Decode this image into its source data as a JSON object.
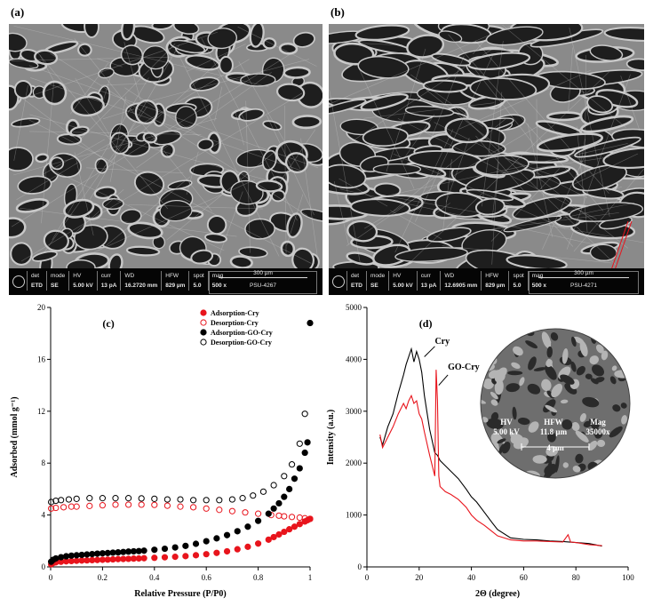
{
  "panels": {
    "a": "(a)",
    "b": "(b)",
    "c": "(c)",
    "d": "(d)"
  },
  "sem_a": {
    "headers": [
      "det",
      "mode",
      "HV",
      "curr",
      "WD",
      "HFW",
      "spot",
      "mag"
    ],
    "values": [
      "ETD",
      "SE",
      "5.00 kV",
      "13 pA",
      "16.2720 mm",
      "829 µm",
      "5.0",
      "500 x"
    ],
    "scale_label": "300 µm",
    "image_id": "PSU-4267"
  },
  "sem_b": {
    "headers": [
      "det",
      "mode",
      "HV",
      "curr",
      "WD",
      "HFW",
      "spot",
      "mag"
    ],
    "values": [
      "ETD",
      "SE",
      "5.00 kV",
      "13 pA",
      "12.6905 mm",
      "829 µm",
      "5.0",
      "500 x"
    ],
    "scale_label": "300 µm",
    "image_id": "PSU-4271"
  },
  "inset": {
    "labels": [
      "HV",
      "HFW",
      "Mag"
    ],
    "values": [
      "5.00 kV",
      "11.8 µm",
      "35000x"
    ],
    "scale_label": "4 µm"
  },
  "colors": {
    "red": "#e8141c",
    "black": "#000000"
  },
  "chart_data": [
    {
      "type": "scatter",
      "panel": "(c)",
      "xlabel": "Relative Pressure (P/P0)",
      "ylabel": "Adsorbed (mmol g⁻¹)",
      "xlim": [
        0,
        1
      ],
      "ylim": [
        0,
        20
      ],
      "xticks": [
        "0",
        "0.2",
        "0.4",
        "0.6",
        "0.8",
        "1"
      ],
      "yticks": [
        "0",
        "4",
        "8",
        "12",
        "16",
        "20"
      ],
      "legend_position": "top-right",
      "series": [
        {
          "name": "Adsorption-Cry",
          "color": "#e8141c",
          "fill": true,
          "x": [
            0.002,
            0.01,
            0.02,
            0.04,
            0.06,
            0.08,
            0.1,
            0.12,
            0.14,
            0.16,
            0.18,
            0.2,
            0.22,
            0.24,
            0.26,
            0.28,
            0.3,
            0.32,
            0.34,
            0.36,
            0.4,
            0.44,
            0.48,
            0.52,
            0.56,
            0.6,
            0.64,
            0.68,
            0.72,
            0.76,
            0.8,
            0.84,
            0.86,
            0.88,
            0.9,
            0.92,
            0.94,
            0.96,
            0.98,
            0.99,
            1.0
          ],
          "y": [
            0.2,
            0.3,
            0.35,
            0.4,
            0.43,
            0.45,
            0.47,
            0.49,
            0.5,
            0.52,
            0.53,
            0.55,
            0.56,
            0.58,
            0.6,
            0.61,
            0.62,
            0.64,
            0.65,
            0.67,
            0.7,
            0.74,
            0.78,
            0.83,
            0.9,
            0.98,
            1.08,
            1.2,
            1.36,
            1.55,
            1.8,
            2.1,
            2.3,
            2.5,
            2.7,
            2.9,
            3.1,
            3.3,
            3.5,
            3.6,
            3.7
          ]
        },
        {
          "name": "Desorption-Cry",
          "color": "#e8141c",
          "fill": false,
          "x": [
            0.002,
            0.02,
            0.05,
            0.08,
            0.1,
            0.15,
            0.2,
            0.25,
            0.3,
            0.35,
            0.4,
            0.45,
            0.5,
            0.55,
            0.6,
            0.65,
            0.7,
            0.75,
            0.8,
            0.85,
            0.88,
            0.9,
            0.93,
            0.96,
            0.98,
            1.0
          ],
          "y": [
            4.5,
            4.55,
            4.6,
            4.65,
            4.65,
            4.7,
            4.75,
            4.8,
            4.8,
            4.8,
            4.78,
            4.72,
            4.65,
            4.6,
            4.5,
            4.4,
            4.3,
            4.2,
            4.1,
            4.0,
            3.95,
            3.9,
            3.85,
            3.8,
            3.75,
            3.7
          ]
        },
        {
          "name": "Adsorption-GO-Cry",
          "color": "#000000",
          "fill": true,
          "x": [
            0.002,
            0.01,
            0.02,
            0.04,
            0.06,
            0.08,
            0.1,
            0.12,
            0.14,
            0.16,
            0.18,
            0.2,
            0.22,
            0.24,
            0.26,
            0.28,
            0.3,
            0.32,
            0.34,
            0.36,
            0.4,
            0.44,
            0.48,
            0.52,
            0.56,
            0.6,
            0.64,
            0.68,
            0.72,
            0.76,
            0.8,
            0.84,
            0.86,
            0.88,
            0.9,
            0.92,
            0.94,
            0.96,
            0.98,
            0.99,
            1.0
          ],
          "y": [
            0.4,
            0.55,
            0.65,
            0.75,
            0.82,
            0.87,
            0.9,
            0.93,
            0.96,
            0.99,
            1.02,
            1.05,
            1.07,
            1.1,
            1.12,
            1.15,
            1.18,
            1.2,
            1.22,
            1.25,
            1.32,
            1.4,
            1.5,
            1.62,
            1.78,
            1.98,
            2.2,
            2.45,
            2.75,
            3.1,
            3.55,
            4.1,
            4.5,
            4.9,
            5.4,
            6.0,
            6.8,
            7.6,
            8.8,
            9.6,
            18.8
          ]
        },
        {
          "name": "Desorption-GO-Cry",
          "color": "#000000",
          "fill": false,
          "x": [
            0.002,
            0.02,
            0.04,
            0.07,
            0.1,
            0.15,
            0.2,
            0.25,
            0.3,
            0.35,
            0.4,
            0.45,
            0.5,
            0.55,
            0.6,
            0.65,
            0.7,
            0.74,
            0.78,
            0.82,
            0.86,
            0.9,
            0.93,
            0.96,
            0.98
          ],
          "y": [
            5.0,
            5.1,
            5.15,
            5.2,
            5.25,
            5.3,
            5.3,
            5.3,
            5.3,
            5.28,
            5.25,
            5.2,
            5.2,
            5.15,
            5.15,
            5.15,
            5.2,
            5.3,
            5.5,
            5.8,
            6.3,
            7.0,
            7.9,
            9.5,
            11.8
          ]
        }
      ]
    },
    {
      "type": "line",
      "panel": "(d)",
      "xlabel": "2Θ (degree)",
      "ylabel": "Intensity (a.u.)",
      "xlim": [
        0,
        100
      ],
      "ylim": [
        0,
        5000
      ],
      "xticks": [
        "0",
        "20",
        "40",
        "60",
        "80",
        "100"
      ],
      "yticks": [
        "0",
        "1000",
        "2000",
        "3000",
        "4000",
        "5000"
      ],
      "annotations": [
        "Cry",
        "GO-Cry"
      ],
      "series": [
        {
          "name": "Cry",
          "color": "#000000",
          "x": [
            5,
            6,
            8,
            10,
            12,
            14,
            15,
            16,
            17,
            18,
            19,
            20,
            21,
            22,
            24,
            26,
            27,
            28,
            30,
            32,
            35,
            38,
            40,
            42,
            45,
            48,
            50,
            55,
            60,
            65,
            70,
            75,
            80,
            85,
            90
          ],
          "y": [
            2500,
            2350,
            2700,
            2950,
            3350,
            3700,
            3900,
            4050,
            4200,
            3950,
            4150,
            4000,
            3750,
            3300,
            2650,
            2200,
            2150,
            2050,
            1950,
            1850,
            1700,
            1500,
            1350,
            1250,
            1050,
            850,
            720,
            560,
            530,
            520,
            500,
            490,
            470,
            450,
            400
          ]
        },
        {
          "name": "GO-Cry",
          "color": "#e8141c",
          "x": [
            5,
            6,
            8,
            10,
            12,
            14,
            15,
            16,
            17,
            18,
            19,
            20,
            21,
            22,
            24,
            26,
            26.5,
            27,
            27.5,
            28,
            30,
            32,
            35,
            38,
            40,
            42,
            45,
            48,
            50,
            55,
            60,
            65,
            70,
            75,
            77,
            78,
            80,
            85,
            90
          ],
          "y": [
            2550,
            2300,
            2500,
            2700,
            2950,
            3150,
            3050,
            3200,
            3300,
            3150,
            3200,
            2950,
            2850,
            2600,
            2150,
            1750,
            3800,
            3200,
            1750,
            1550,
            1450,
            1400,
            1300,
            1150,
            1000,
            900,
            800,
            680,
            600,
            520,
            500,
            500,
            490,
            480,
            620,
            480,
            470,
            430,
            410
          ]
        }
      ]
    }
  ]
}
